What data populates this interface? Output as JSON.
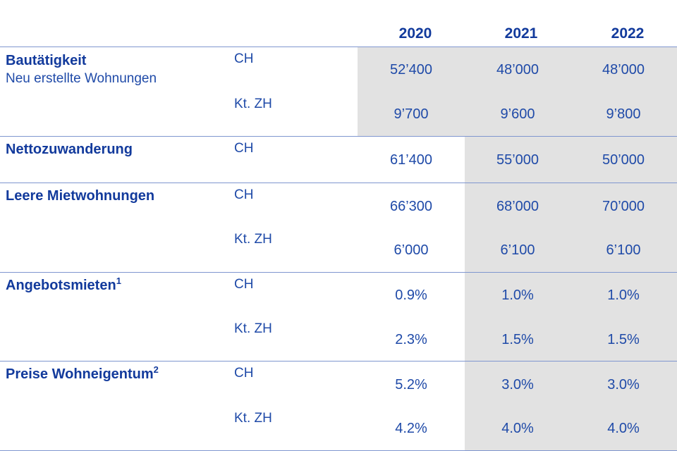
{
  "years": [
    "2020",
    "2021",
    "2022"
  ],
  "sections": [
    {
      "title": "Bautätigkeit",
      "subtitle": "Neu erstellte Wohnungen",
      "sup": "",
      "rows": [
        {
          "region": "CH",
          "values": [
            "52’400",
            "48’000",
            "48’000"
          ]
        },
        {
          "region": "Kt. ZH",
          "values": [
            "9’700",
            "9’600",
            "9’800"
          ]
        }
      ]
    },
    {
      "title": "Nettozuwanderung",
      "sup": "",
      "rows": [
        {
          "region": "CH",
          "values": [
            "61’400",
            "55’000",
            "50’000"
          ]
        }
      ]
    },
    {
      "title": "Leere Mietwohnungen",
      "sup": "",
      "rows": [
        {
          "region": "CH",
          "values": [
            "66’300",
            "68’000",
            "70’000"
          ]
        },
        {
          "region": "Kt. ZH",
          "values": [
            "6’000",
            "6’100",
            "6’100"
          ]
        }
      ]
    },
    {
      "title": "Angebotsmieten",
      "sup": "1",
      "rows": [
        {
          "region": "CH",
          "values": [
            "0.9%",
            "1.0%",
            "1.0%"
          ]
        },
        {
          "region": "Kt. ZH",
          "values": [
            "2.3%",
            "1.5%",
            "1.5%"
          ]
        }
      ]
    },
    {
      "title": "Preise Wohneigentum",
      "sup": "2",
      "rows": [
        {
          "region": "CH",
          "values": [
            "5.2%",
            "3.0%",
            "3.0%"
          ]
        },
        {
          "region": "Kt. ZH",
          "values": [
            "4.2%",
            "4.0%",
            "4.0%"
          ]
        }
      ]
    }
  ]
}
